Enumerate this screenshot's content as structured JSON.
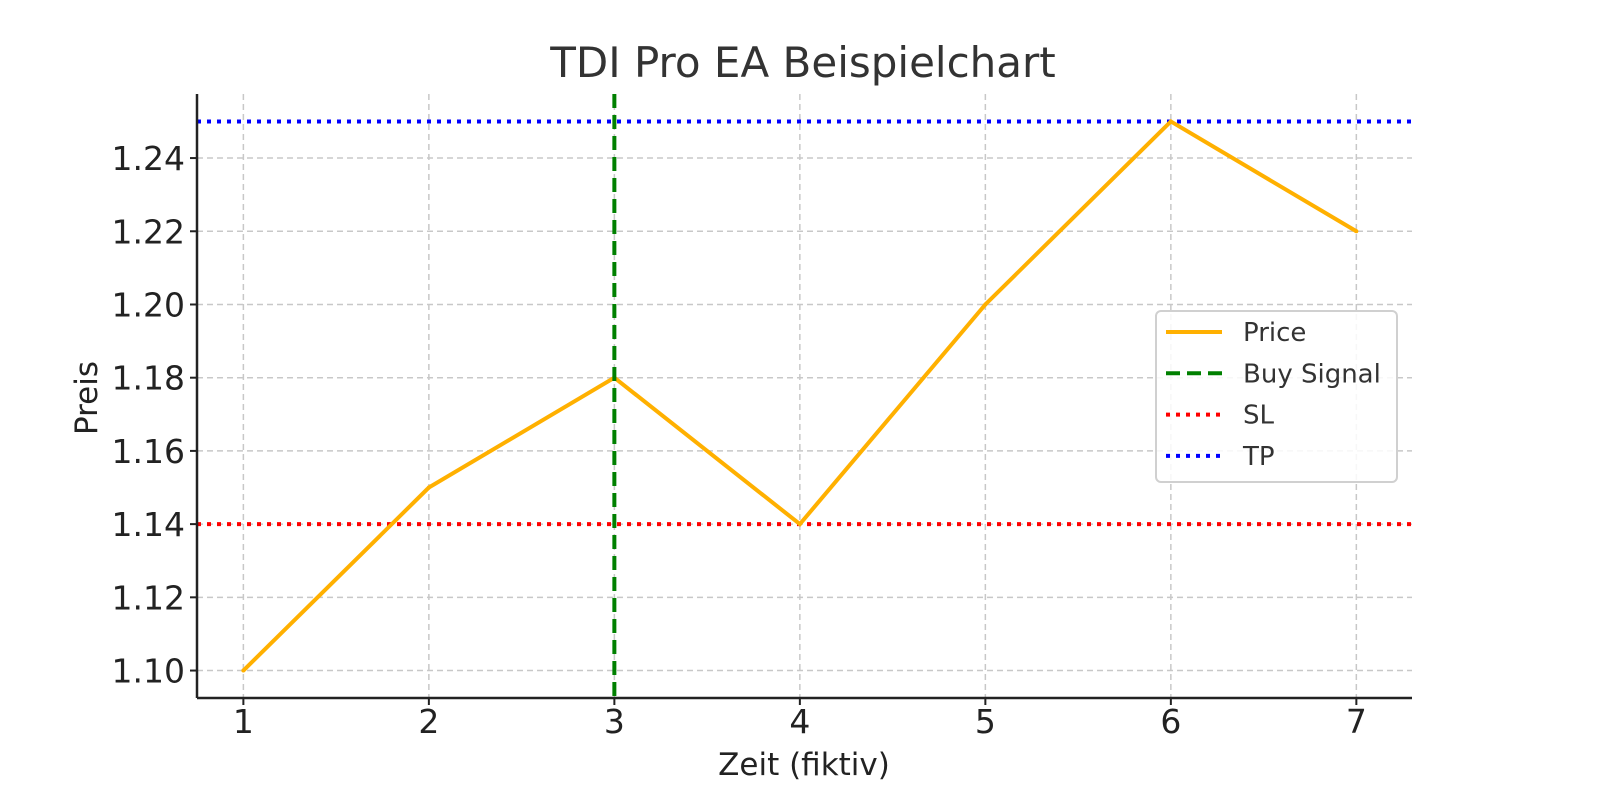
{
  "chart_data": {
    "type": "line",
    "title": "TDI Pro EA Beispielchart",
    "xlabel": "Zeit (fiktiv)",
    "ylabel": "Preis",
    "x": [
      1,
      2,
      3,
      4,
      5,
      6,
      7
    ],
    "xlim": [
      0.75,
      7.3
    ],
    "ylim": [
      1.0925,
      1.2575
    ],
    "x_ticks": [
      1,
      2,
      3,
      4,
      5,
      6,
      7
    ],
    "y_ticks": [
      1.1,
      1.12,
      1.14,
      1.16,
      1.18,
      1.2,
      1.22,
      1.24
    ],
    "x_tick_labels": [
      "1",
      "2",
      "3",
      "4",
      "5",
      "6",
      "7"
    ],
    "y_tick_labels": [
      "1.10",
      "1.12",
      "1.14",
      "1.16",
      "1.18",
      "1.20",
      "1.22",
      "1.24"
    ],
    "grid": true,
    "legend_position": "right",
    "series": [
      {
        "name": "Price",
        "type": "line",
        "style": "solid",
        "color": "#FFB000",
        "values": [
          1.1,
          1.15,
          1.18,
          1.14,
          1.2,
          1.25,
          1.22
        ]
      },
      {
        "name": "Buy Signal",
        "type": "vline",
        "style": "dashed",
        "color": "#008000",
        "x": 3
      },
      {
        "name": "SL",
        "type": "hline",
        "style": "dotted",
        "color": "#FF0000",
        "y": 1.14
      },
      {
        "name": "TP",
        "type": "hline",
        "style": "dotted",
        "color": "#0000FF",
        "y": 1.25
      }
    ]
  }
}
